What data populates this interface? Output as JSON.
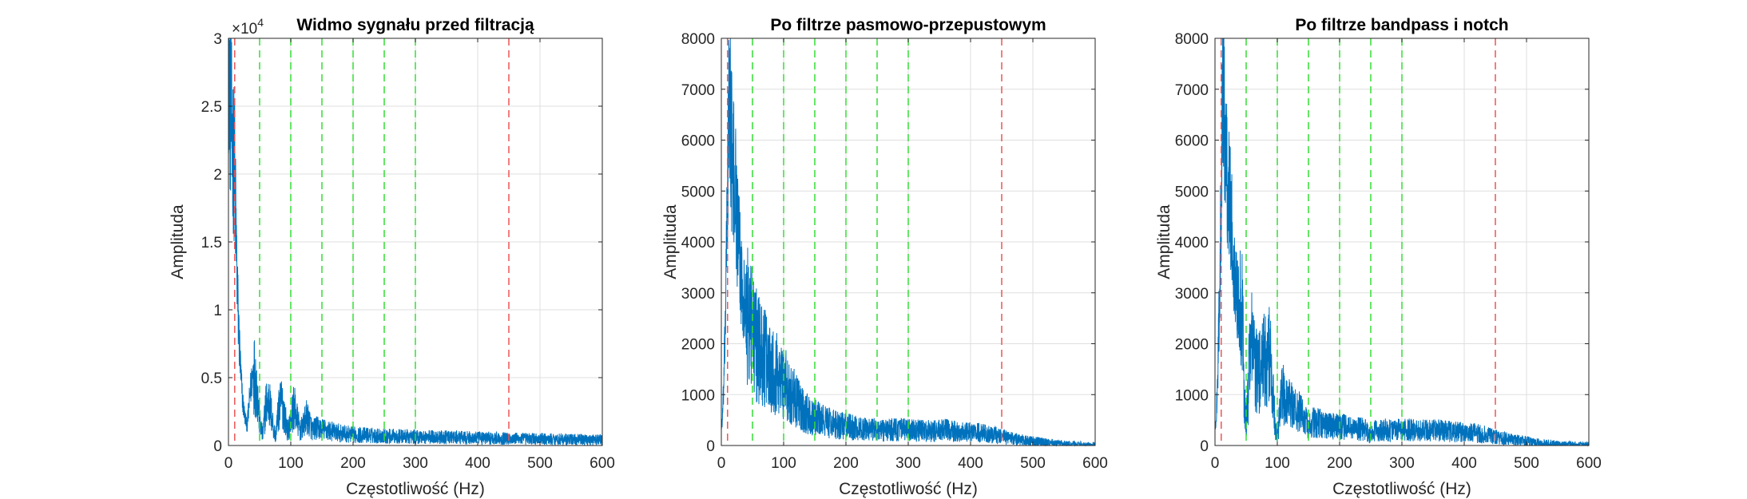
{
  "chart_data": [
    {
      "type": "line",
      "title": "Widmo sygnału przed filtracją",
      "xlabel": "Częstotliwość (Hz)",
      "ylabel": "Amplituda",
      "xlim": [
        0,
        600
      ],
      "ylim": [
        0,
        30000
      ],
      "x_ticks": [
        0,
        100,
        200,
        300,
        400,
        500,
        600
      ],
      "y_tick_values": [
        0,
        5000,
        10000,
        15000,
        20000,
        25000,
        30000
      ],
      "y_tick_labels": [
        "0",
        "0.5",
        "1",
        "1.5",
        "2",
        "2.5",
        "3"
      ],
      "y_exponent_label": "×10",
      "y_exponent_power": "4",
      "grid": true,
      "line_color": "#0072BD",
      "red_dashed_lines_hz": [
        10,
        450
      ],
      "green_dashed_lines_hz": [
        50,
        100,
        150,
        200,
        250,
        300
      ],
      "series": [
        {
          "x": [
            0,
            1,
            2,
            4,
            6,
            8,
            10,
            12,
            14,
            16,
            18,
            20,
            23,
            26,
            30,
            35,
            40,
            45,
            50,
            55,
            60,
            65,
            70,
            75,
            80,
            85,
            90,
            95,
            100,
            105,
            110,
            115,
            120,
            125,
            130,
            135,
            140,
            150,
            160,
            170,
            180,
            200,
            250,
            300,
            350,
            400,
            450,
            500,
            550,
            600
          ],
          "y": [
            30000,
            28500,
            26000,
            24000,
            22500,
            21500,
            20000,
            16000,
            12000,
            9000,
            7000,
            5000,
            3200,
            2200,
            1400,
            4000,
            5600,
            4500,
            1800,
            700,
            3000,
            3300,
            2000,
            600,
            2400,
            3300,
            2300,
            1000,
            1800,
            2900,
            2000,
            1100,
            1400,
            2100,
            1700,
            1100,
            1300,
            1200,
            1100,
            1000,
            900,
            800,
            700,
            650,
            600,
            550,
            520,
            480,
            450,
            420
          ]
        }
      ]
    },
    {
      "type": "line",
      "title": "Po filtrze pasmowo-przepustowym",
      "xlabel": "Częstotliwość (Hz)",
      "ylabel": "Amplituda",
      "xlim": [
        0,
        600
      ],
      "ylim": [
        0,
        8000
      ],
      "x_ticks": [
        0,
        100,
        200,
        300,
        400,
        500,
        600
      ],
      "y_tick_values": [
        0,
        1000,
        2000,
        3000,
        4000,
        5000,
        6000,
        7000,
        8000
      ],
      "y_tick_labels": [
        "0",
        "1000",
        "2000",
        "3000",
        "4000",
        "5000",
        "6000",
        "7000",
        "8000"
      ],
      "grid": true,
      "line_color": "#0072BD",
      "red_dashed_lines_hz": [
        10,
        450
      ],
      "green_dashed_lines_hz": [
        50,
        100,
        150,
        200,
        250,
        300
      ],
      "series": [
        {
          "x": [
            0,
            2,
            4,
            6,
            8,
            10,
            12,
            14,
            16,
            18,
            20,
            23,
            26,
            30,
            35,
            40,
            45,
            50,
            55,
            60,
            70,
            80,
            90,
            100,
            110,
            120,
            130,
            140,
            150,
            160,
            180,
            200,
            220,
            240,
            260,
            280,
            300,
            320,
            340,
            360,
            380,
            400,
            420,
            440,
            450,
            460,
            480,
            500,
            520,
            540,
            560,
            580,
            600
          ],
          "y": [
            300,
            600,
            1200,
            2200,
            3500,
            5000,
            6500,
            7000,
            6000,
            5400,
            5300,
            5000,
            4200,
            3600,
            3000,
            2600,
            2400,
            2300,
            2000,
            1900,
            1700,
            1550,
            1400,
            1250,
            1050,
            900,
            700,
            600,
            550,
            500,
            420,
            380,
            330,
            320,
            300,
            320,
            300,
            290,
            280,
            300,
            270,
            260,
            240,
            200,
            180,
            150,
            110,
            80,
            55,
            35,
            20,
            12,
            8
          ]
        }
      ]
    },
    {
      "type": "line",
      "title": "Po filtrze bandpass i notch",
      "xlabel": "Częstotliwość (Hz)",
      "ylabel": "Amplituda",
      "xlim": [
        0,
        600
      ],
      "ylim": [
        0,
        8000
      ],
      "x_ticks": [
        0,
        100,
        200,
        300,
        400,
        500,
        600
      ],
      "y_tick_values": [
        0,
        1000,
        2000,
        3000,
        4000,
        5000,
        6000,
        7000,
        8000
      ],
      "y_tick_labels": [
        "0",
        "1000",
        "2000",
        "3000",
        "4000",
        "5000",
        "6000",
        "7000",
        "8000"
      ],
      "grid": true,
      "line_color": "#0072BD",
      "red_dashed_lines_hz": [
        10,
        450
      ],
      "green_dashed_lines_hz": [
        50,
        100,
        150,
        200,
        250,
        300
      ],
      "series": [
        {
          "x": [
            0,
            2,
            4,
            6,
            8,
            10,
            12,
            14,
            16,
            18,
            20,
            23,
            26,
            30,
            35,
            40,
            44,
            47,
            50,
            53,
            56,
            60,
            65,
            70,
            75,
            80,
            85,
            90,
            94,
            97,
            100,
            103,
            106,
            110,
            115,
            120,
            130,
            140,
            147,
            150,
            153,
            160,
            170,
            180,
            190,
            200,
            220,
            240,
            250,
            260,
            280,
            300,
            320,
            340,
            360,
            380,
            400,
            420,
            440,
            450,
            460,
            480,
            500,
            520,
            540,
            560,
            580,
            600
          ],
          "y": [
            300,
            600,
            1200,
            2200,
            3500,
            5200,
            6600,
            7000,
            6200,
            5400,
            5300,
            5000,
            4300,
            3700,
            3000,
            2700,
            2400,
            900,
            500,
            900,
            2000,
            1900,
            1500,
            1400,
            1500,
            1700,
            1800,
            1600,
            900,
            300,
            200,
            500,
            900,
            1000,
            900,
            850,
            700,
            600,
            450,
            300,
            450,
            450,
            430,
            400,
            380,
            380,
            330,
            320,
            200,
            320,
            300,
            310,
            300,
            290,
            300,
            270,
            260,
            240,
            200,
            180,
            150,
            110,
            80,
            55,
            35,
            20,
            12,
            8
          ]
        }
      ]
    }
  ]
}
